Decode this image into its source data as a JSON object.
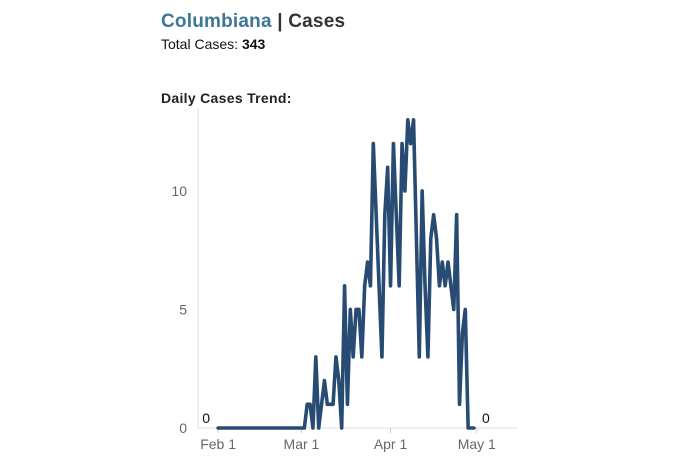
{
  "header": {
    "county": "Columbiana",
    "separator": "|",
    "section": "Cases",
    "total_label": "Total Cases:",
    "total_value": "343"
  },
  "chart_heading": "Daily Cases Trend:",
  "colors": {
    "line": "#274b72",
    "county_title": "#3d7796",
    "axis": "#dddddd",
    "tick_text": "#666666"
  },
  "chart_data": {
    "type": "line",
    "title": "Daily Cases Trend:",
    "xlabel": "",
    "ylabel": "",
    "x_start": "2020-02-01",
    "x_end": "2020-05-13",
    "xlim": [
      -7,
      104
    ],
    "ylim": [
      0,
      13.5
    ],
    "x_ticks": [
      {
        "label": "Feb 1",
        "day": 0
      },
      {
        "label": "Mar 1",
        "day": 29
      },
      {
        "label": "Apr 1",
        "day": 60
      },
      {
        "label": "May 1",
        "day": 90
      }
    ],
    "y_ticks": [
      {
        "label": "0",
        "value": 0
      },
      {
        "label": "5",
        "value": 5
      },
      {
        "label": "10",
        "value": 10
      }
    ],
    "series": [
      {
        "name": "Daily Cases",
        "points": [
          [
            0,
            0
          ],
          [
            30,
            0
          ],
          [
            31,
            1
          ],
          [
            32,
            1
          ],
          [
            33,
            0
          ],
          [
            34,
            3
          ],
          [
            35,
            0
          ],
          [
            36,
            1
          ],
          [
            37,
            2
          ],
          [
            38,
            1
          ],
          [
            39,
            1
          ],
          [
            40,
            1
          ],
          [
            41,
            3
          ],
          [
            42,
            2
          ],
          [
            43,
            0
          ],
          [
            44,
            6
          ],
          [
            45,
            1
          ],
          [
            46,
            5
          ],
          [
            47,
            3
          ],
          [
            48,
            5
          ],
          [
            49,
            5
          ],
          [
            50,
            3
          ],
          [
            51,
            6
          ],
          [
            52,
            7
          ],
          [
            53,
            6
          ],
          [
            54,
            12
          ],
          [
            55,
            9
          ],
          [
            56,
            6
          ],
          [
            57,
            3
          ],
          [
            58,
            9
          ],
          [
            59,
            11
          ],
          [
            60,
            6
          ],
          [
            61,
            12
          ],
          [
            62,
            9
          ],
          [
            63,
            6
          ],
          [
            64,
            12
          ],
          [
            65,
            10
          ],
          [
            66,
            13
          ],
          [
            67,
            12
          ],
          [
            68,
            13
          ],
          [
            69,
            8
          ],
          [
            70,
            3
          ],
          [
            71,
            10
          ],
          [
            72,
            6
          ],
          [
            73,
            3
          ],
          [
            74,
            8
          ],
          [
            75,
            9
          ],
          [
            76,
            8
          ],
          [
            77,
            6
          ],
          [
            78,
            7
          ],
          [
            79,
            6
          ],
          [
            80,
            7
          ],
          [
            81,
            6
          ],
          [
            82,
            5
          ],
          [
            83,
            9
          ],
          [
            84,
            1
          ],
          [
            85,
            4
          ],
          [
            86,
            5
          ],
          [
            87,
            0
          ],
          [
            89,
            0
          ]
        ]
      }
    ],
    "start_label": "0",
    "end_label": "0"
  }
}
